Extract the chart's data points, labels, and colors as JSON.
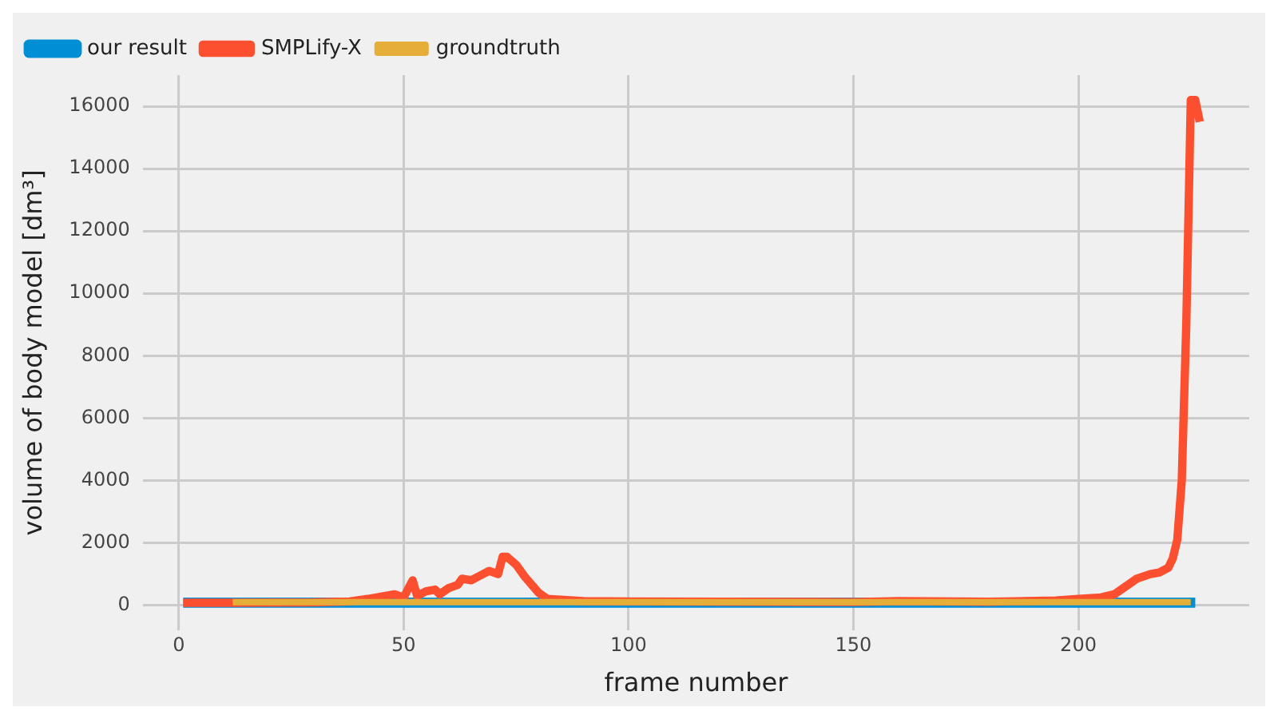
{
  "chart_data": {
    "type": "line",
    "xlabel": "frame number",
    "ylabel": "volume of body model [dm³]",
    "xlim": [
      -8,
      238
    ],
    "xticks": [
      0,
      50,
      100,
      150,
      200
    ],
    "ylim": [
      -800,
      17000
    ],
    "yticks": [
      0,
      2000,
      4000,
      6000,
      8000,
      10000,
      12000,
      14000,
      16000
    ],
    "grid": true,
    "legend": "top left",
    "marker": "none",
    "line_style": "solid",
    "series": [
      {
        "name": "our result",
        "color": "#008fd5",
        "x": [
          1,
          226
        ],
        "values": [
          80,
          80
        ]
      },
      {
        "name": "SMPLify-X",
        "color": "#fc4f30",
        "x": [
          1,
          12,
          30,
          38,
          42,
          46,
          48,
          50,
          52,
          53,
          55,
          57,
          58,
          60,
          62,
          63,
          65,
          67,
          69,
          71,
          72,
          73,
          75,
          77,
          80,
          82,
          90,
          100,
          150,
          160,
          180,
          195,
          200,
          205,
          208,
          210,
          213,
          216,
          218,
          220,
          221,
          222,
          223,
          224,
          225,
          226,
          227
        ],
        "values": [
          80,
          80,
          90,
          120,
          200,
          300,
          350,
          250,
          800,
          300,
          450,
          500,
          350,
          550,
          650,
          850,
          800,
          950,
          1100,
          1000,
          1550,
          1550,
          1300,
          900,
          400,
          200,
          130,
          120,
          100,
          130,
          110,
          150,
          200,
          250,
          350,
          550,
          850,
          1000,
          1050,
          1200,
          1500,
          2100,
          4000,
          9000,
          16200,
          16200,
          15500
        ]
      },
      {
        "name": "groundtruth",
        "color": "#e5ae38",
        "x": [
          12,
          225
        ],
        "values": [
          100,
          100
        ]
      }
    ]
  }
}
